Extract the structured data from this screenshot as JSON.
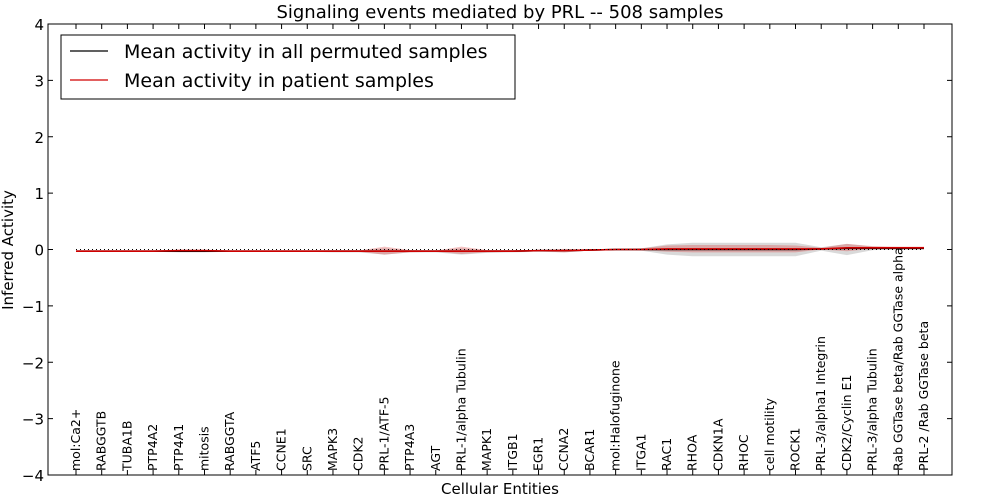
{
  "chart_data": {
    "type": "line",
    "title": "Signaling events mediated by PRL -- 508 samples",
    "xlabel": "Cellular Entities",
    "ylabel": "Inferred Activity",
    "ylim": [
      -4,
      4
    ],
    "yticks": [
      "4",
      "3",
      "2",
      "1",
      "0",
      "−1",
      "−2",
      "−3",
      "−4"
    ],
    "ytick_values": [
      4,
      3,
      2,
      1,
      0,
      -1,
      -2,
      -3,
      -4
    ],
    "legend_position": "top-left",
    "categories": [
      "mol:Ca2+",
      "RABGGTB",
      "TUBA1B",
      "PTP4A2",
      "PTP4A1",
      "mitosis",
      "RABGGTA",
      "ATF5",
      "CCNE1",
      "SRC",
      "MAPK3",
      "CDK2",
      "PRL-1/ATF-5",
      "PTP4A3",
      "AGT",
      "PRL-1/alpha Tubulin",
      "MAPK1",
      "ITGB1",
      "EGR1",
      "CCNA2",
      "BCAR1",
      "mol:Halofuginone",
      "ITGA1",
      "RAC1",
      "RHOA",
      "CDKN1A",
      "RHOC",
      "cell motility",
      "ROCK1",
      "PRL-3/alpha1 Integrin",
      "CDK2/Cyclin E1",
      "PRL-3/alpha Tubulin",
      "Rab GGTase beta/Rab GGTase alpha",
      "PRL-2 /Rab GGTase beta"
    ],
    "series": [
      {
        "name": "Mean activity in all permuted samples",
        "color": "#000000",
        "values": [
          -0.03,
          -0.03,
          -0.03,
          -0.03,
          -0.03,
          -0.03,
          -0.03,
          -0.03,
          -0.03,
          -0.03,
          -0.03,
          -0.03,
          -0.03,
          -0.03,
          -0.03,
          -0.03,
          -0.03,
          -0.03,
          -0.02,
          -0.02,
          -0.01,
          0.0,
          0.0,
          0.0,
          0.0,
          0.0,
          0.0,
          0.0,
          0.0,
          0.01,
          0.02,
          0.02,
          0.02,
          0.02
        ],
        "band_low": [
          -0.04,
          -0.04,
          -0.04,
          -0.04,
          -0.05,
          -0.05,
          -0.04,
          -0.04,
          -0.04,
          -0.04,
          -0.05,
          -0.05,
          -0.09,
          -0.05,
          -0.05,
          -0.09,
          -0.06,
          -0.05,
          -0.04,
          -0.05,
          -0.02,
          -0.01,
          -0.02,
          -0.09,
          -0.12,
          -0.12,
          -0.12,
          -0.12,
          -0.12,
          -0.02,
          -0.1,
          -0.01,
          0.0,
          0.0
        ],
        "band_high": [
          -0.02,
          -0.02,
          -0.02,
          -0.02,
          -0.01,
          -0.01,
          -0.02,
          -0.02,
          -0.02,
          -0.02,
          -0.01,
          -0.01,
          0.02,
          -0.01,
          -0.01,
          0.02,
          -0.01,
          -0.01,
          -0.01,
          0.0,
          0.0,
          0.01,
          0.02,
          0.09,
          0.12,
          0.12,
          0.12,
          0.12,
          0.12,
          0.04,
          0.1,
          0.05,
          0.04,
          0.04
        ]
      },
      {
        "name": "Mean activity in patient samples",
        "color": "#d00000",
        "values": [
          -0.03,
          -0.03,
          -0.03,
          -0.03,
          -0.02,
          -0.02,
          -0.03,
          -0.03,
          -0.03,
          -0.03,
          -0.03,
          -0.03,
          -0.03,
          -0.03,
          -0.03,
          -0.03,
          -0.03,
          -0.03,
          -0.02,
          -0.02,
          -0.01,
          0.0,
          0.0,
          0.01,
          0.01,
          0.01,
          0.01,
          0.01,
          0.01,
          0.01,
          0.03,
          0.03,
          0.03,
          0.03
        ],
        "band_low": [
          -0.04,
          -0.04,
          -0.04,
          -0.04,
          -0.04,
          -0.04,
          -0.04,
          -0.04,
          -0.04,
          -0.04,
          -0.04,
          -0.04,
          -0.09,
          -0.05,
          -0.04,
          -0.08,
          -0.05,
          -0.04,
          -0.03,
          -0.05,
          -0.02,
          -0.01,
          -0.01,
          -0.04,
          -0.05,
          -0.05,
          -0.05,
          -0.05,
          -0.05,
          0.0,
          -0.03,
          0.01,
          0.02,
          0.02
        ],
        "band_high": [
          -0.02,
          -0.02,
          -0.02,
          -0.02,
          0.0,
          0.0,
          -0.02,
          -0.02,
          -0.02,
          -0.02,
          -0.02,
          -0.02,
          0.05,
          -0.01,
          -0.02,
          0.05,
          -0.01,
          -0.01,
          -0.01,
          0.01,
          0.0,
          0.01,
          0.02,
          0.07,
          0.08,
          0.08,
          0.08,
          0.08,
          0.07,
          0.03,
          0.1,
          0.06,
          0.05,
          0.05
        ]
      }
    ],
    "reference_line": {
      "y": 0,
      "style": "dotted"
    }
  }
}
